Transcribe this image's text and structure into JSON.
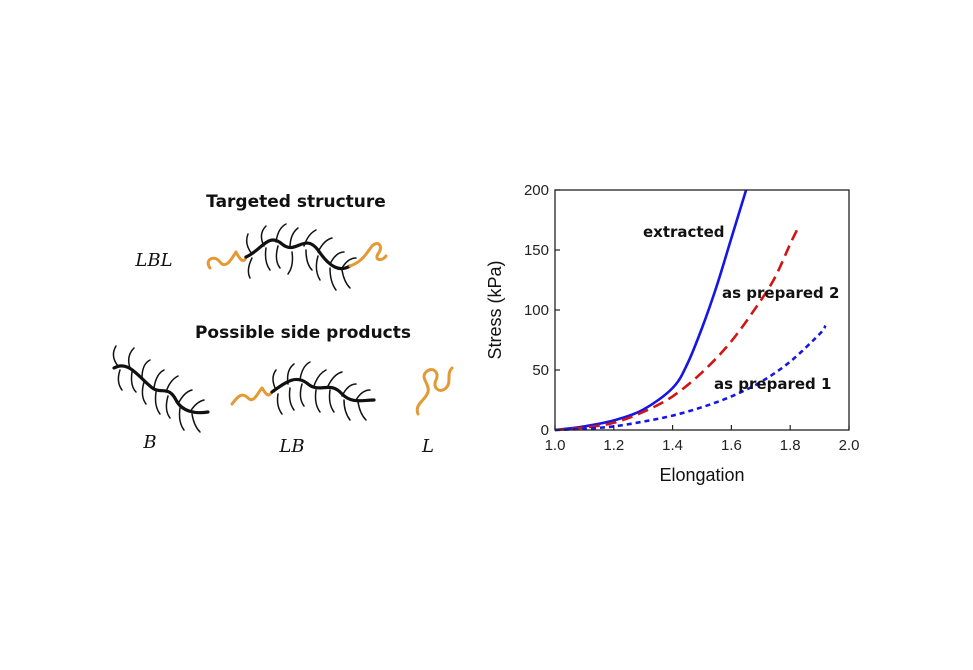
{
  "schematic": {
    "targeted_title": "Targeted structure",
    "side_title": "Possible side products",
    "labels": {
      "lbl": "LBL",
      "b": "B",
      "lb": "LB",
      "l": "L"
    },
    "colors": {
      "brush": "#111111",
      "linear": "#E39A35"
    }
  },
  "chart_data": {
    "type": "line",
    "xlabel": "Elongation",
    "ylabel": "Stress (kPa)",
    "xlim": [
      1.0,
      2.0
    ],
    "ylim": [
      0,
      200
    ],
    "xticks": [
      "1.0",
      "1.2",
      "1.4",
      "1.6",
      "1.8",
      "2.0"
    ],
    "yticks": [
      "0",
      "50",
      "100",
      "150",
      "200"
    ],
    "grid": false,
    "series": [
      {
        "name": "extracted",
        "color": "#1515E6",
        "style": "solid",
        "x": [
          1.0,
          1.1,
          1.2,
          1.3,
          1.4,
          1.45,
          1.5,
          1.55,
          1.6,
          1.65
        ],
        "y": [
          0,
          3,
          8,
          17,
          35,
          55,
          85,
          120,
          160,
          200
        ]
      },
      {
        "name": "as prepared 2",
        "color": "#D01515",
        "style": "dashed",
        "x": [
          1.0,
          1.1,
          1.2,
          1.3,
          1.4,
          1.5,
          1.6,
          1.7,
          1.75,
          1.8,
          1.83
        ],
        "y": [
          0,
          2,
          6,
          15,
          28,
          48,
          74,
          108,
          128,
          155,
          170
        ]
      },
      {
        "name": "as prepared 1",
        "color": "#1515E6",
        "style": "dotted",
        "x": [
          1.0,
          1.1,
          1.2,
          1.3,
          1.4,
          1.5,
          1.6,
          1.7,
          1.8,
          1.9,
          1.92
        ],
        "y": [
          0,
          1,
          3,
          7,
          12,
          19,
          28,
          40,
          57,
          80,
          87
        ]
      }
    ]
  }
}
